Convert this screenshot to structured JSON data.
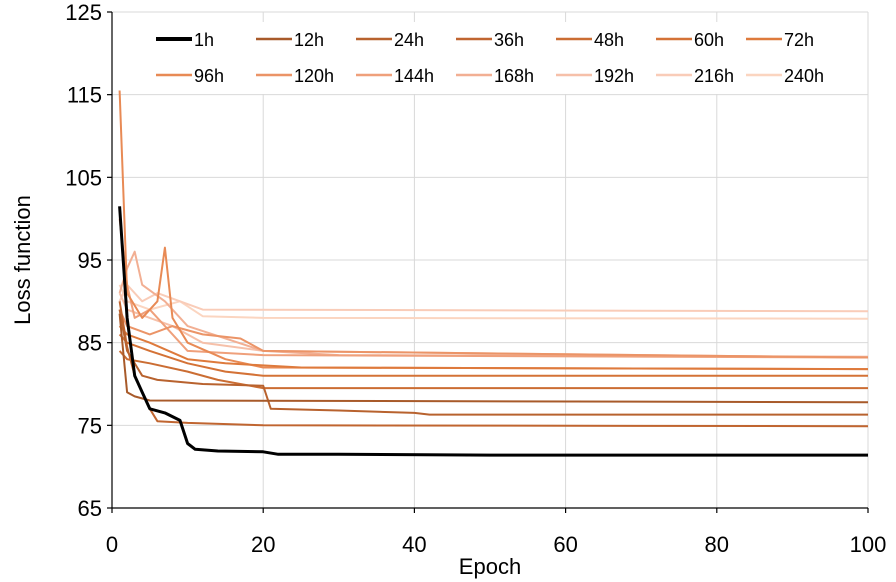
{
  "chart_data": {
    "type": "line",
    "xlabel": "Epoch",
    "ylabel": "Loss function",
    "xlim": [
      0,
      100
    ],
    "ylim": [
      65,
      125
    ],
    "xticks": [
      0,
      20,
      40,
      60,
      80,
      100
    ],
    "yticks": [
      65,
      75,
      85,
      95,
      105,
      115,
      125
    ],
    "grid": true,
    "legend_position": "top",
    "series": [
      {
        "name": "1h",
        "color": "#000000",
        "x": [
          1,
          2,
          3,
          4,
          5,
          7,
          9,
          10,
          11,
          14,
          20,
          22,
          30,
          50,
          100
        ],
        "y": [
          101.5,
          88,
          81,
          79,
          77,
          76.5,
          75.6,
          72.8,
          72.1,
          71.9,
          71.8,
          71.5,
          71.5,
          71.4,
          71.4
        ]
      },
      {
        "name": "12h",
        "color": "#a85a2a",
        "x": [
          1,
          2,
          3,
          5,
          100
        ],
        "y": [
          88.5,
          79,
          78.5,
          78,
          77.8
        ]
      },
      {
        "name": "24h",
        "color": "#b8622e",
        "x": [
          1,
          2,
          4,
          6,
          12,
          20,
          21,
          30,
          40,
          42,
          100
        ],
        "y": [
          89,
          84,
          81,
          80.5,
          80,
          79.8,
          77,
          76.8,
          76.5,
          76.3,
          76.3
        ]
      },
      {
        "name": "36h",
        "color": "#c06530",
        "x": [
          1,
          2,
          3,
          5,
          6,
          10,
          20,
          100
        ],
        "y": [
          90,
          84.5,
          81,
          77,
          75.5,
          75.3,
          75,
          74.9
        ]
      },
      {
        "name": "48h",
        "color": "#cb6d33",
        "x": [
          1,
          2,
          5,
          10,
          14,
          20,
          100
        ],
        "y": [
          84,
          83,
          82.5,
          81.5,
          80.5,
          79.5,
          79.5
        ]
      },
      {
        "name": "60h",
        "color": "#d47236",
        "x": [
          1,
          2,
          5,
          10,
          15,
          20,
          100
        ],
        "y": [
          86,
          85,
          84,
          82.5,
          81.5,
          81,
          81
        ]
      },
      {
        "name": "72h",
        "color": "#de7a3c",
        "x": [
          1,
          2,
          5,
          10,
          15,
          25,
          100
        ],
        "y": [
          87,
          86,
          85,
          83,
          82.5,
          82,
          81.8
        ]
      },
      {
        "name": "96h",
        "color": "#e88a55",
        "x": [
          1,
          2,
          4,
          6,
          7,
          8,
          10,
          15,
          20,
          100
        ],
        "y": [
          115.5,
          91,
          88,
          90,
          96.5,
          88,
          85,
          83,
          82,
          81.8
        ]
      },
      {
        "name": "120h",
        "color": "#eb9467",
        "x": [
          1,
          2,
          5,
          8,
          12,
          17,
          20,
          100
        ],
        "y": [
          89,
          87,
          86,
          87,
          86,
          85.5,
          84,
          83.2
        ]
      },
      {
        "name": "144h",
        "color": "#efa07b",
        "x": [
          1,
          2,
          3,
          5,
          7,
          10,
          20,
          100
        ],
        "y": [
          100,
          92,
          88,
          89,
          87,
          84,
          83.5,
          83.2
        ]
      },
      {
        "name": "168h",
        "color": "#f2af93",
        "x": [
          1,
          2,
          3,
          4,
          7,
          10,
          20,
          30,
          100
        ],
        "y": [
          91,
          94,
          96,
          92,
          90,
          87,
          84,
          83.5,
          83.3
        ]
      },
      {
        "name": "192h",
        "color": "#f6c0a9",
        "x": [
          1,
          2,
          5,
          8,
          12,
          20,
          100
        ],
        "y": [
          91,
          89,
          88,
          87,
          85,
          84,
          83.2
        ]
      },
      {
        "name": "216h",
        "color": "#f9ccb8",
        "x": [
          1,
          2,
          4,
          6,
          9,
          12,
          100
        ],
        "y": [
          90,
          92,
          90,
          91,
          90,
          89,
          88.8
        ]
      },
      {
        "name": "240h",
        "color": "#fbd5c0",
        "x": [
          1,
          2,
          5,
          9,
          12,
          20,
          100
        ],
        "y": [
          92,
          90,
          89,
          90,
          88.2,
          88,
          87.9
        ]
      }
    ]
  }
}
